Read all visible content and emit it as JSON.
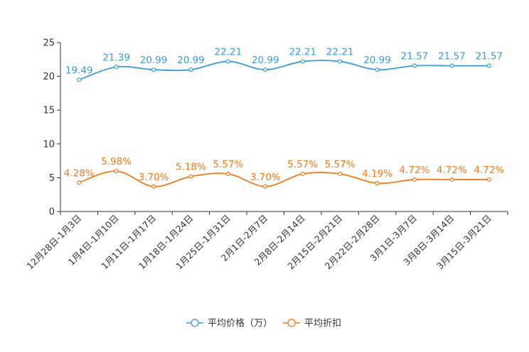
{
  "chart_data": {
    "type": "line",
    "title": "",
    "xlabel": "",
    "ylabel": "",
    "ylim": [
      0,
      25
    ],
    "yticks": [
      0,
      5,
      10,
      15,
      20,
      25
    ],
    "categories": [
      "12月28日-1月3日",
      "1月4日-1月10日",
      "1月11日-1月17日",
      "1月18日-1月24日",
      "1月25日-1月31日",
      "2月1日-2月7日",
      "2月8日-2月14日",
      "2月15日-2月21日",
      "2月22日-2月28日",
      "3月1日-3月7日",
      "3月8日-3月14日",
      "3月15日-3月21日"
    ],
    "series": [
      {
        "name": "平均价格（万）",
        "color": "#3a9bd5",
        "values": [
          19.49,
          21.39,
          20.99,
          20.99,
          22.21,
          20.99,
          22.21,
          22.21,
          20.99,
          21.57,
          21.57,
          21.57
        ],
        "labels": [
          "19.49",
          "21.39",
          "20.99",
          "20.99",
          "22.21",
          "20.99",
          "22.21",
          "22.21",
          "20.99",
          "21.57",
          "21.57",
          "21.57"
        ]
      },
      {
        "name": "平均折扣",
        "color": "#f07a1a",
        "values": [
          4.28,
          5.98,
          3.7,
          5.18,
          5.57,
          3.7,
          5.57,
          5.57,
          4.19,
          4.72,
          4.72,
          4.72
        ],
        "labels": [
          "4.28%",
          "5.98%",
          "3.70%",
          "5.18%",
          "5.57%",
          "3.70%",
          "5.57%",
          "5.57%",
          "4.19%",
          "4.72%",
          "4.72%",
          "4.72%"
        ]
      }
    ],
    "legend_position": "bottom-center",
    "grid": false
  }
}
